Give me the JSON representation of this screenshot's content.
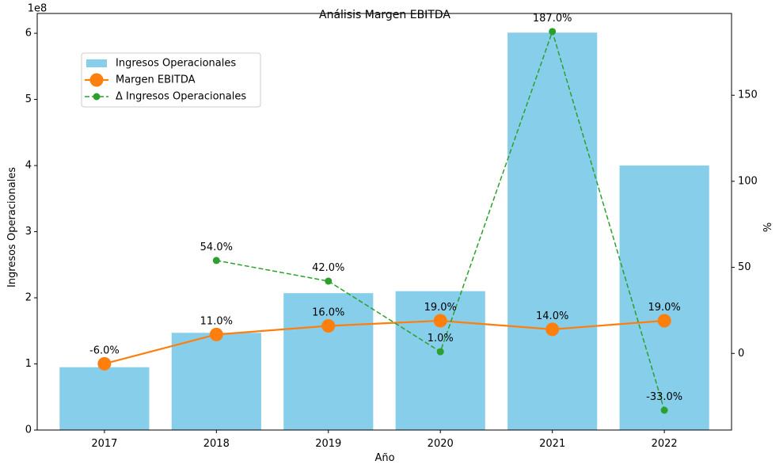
{
  "chart_data": {
    "type": "bar",
    "title": "Análisis Margen EBITDA",
    "xlabel": "Año",
    "ylabel_left": "Ingresos Operacionales",
    "ylabel_right": "%",
    "left_axis_multiplier": "1e8",
    "categories": [
      "2017",
      "2018",
      "2019",
      "2020",
      "2021",
      "2022"
    ],
    "ylim_left": [
      0,
      6.3
    ],
    "ylim_right": [
      -44.5,
      197.5
    ],
    "left_ticks": [
      0,
      1,
      2,
      3,
      4,
      5,
      6
    ],
    "right_ticks": [
      0,
      50,
      100,
      150
    ],
    "legend_position": "upper-left",
    "grid": false,
    "series": [
      {
        "name": "Ingresos Operacionales",
        "type": "bar",
        "axis": "left",
        "color": "#87ceeb",
        "values": [
          0.95,
          1.47,
          2.07,
          2.1,
          6.01,
          4.0
        ]
      },
      {
        "name": "Margen EBITDA",
        "type": "line",
        "axis": "right",
        "color": "#ff7f0e",
        "values": [
          -6.0,
          11.0,
          16.0,
          19.0,
          14.0,
          19.0
        ],
        "labels": [
          "-6.0%",
          "11.0%",
          "16.0%",
          "19.0%",
          "14.0%",
          "19.0%"
        ]
      },
      {
        "name": "Δ Ingresos Operacionales",
        "type": "line",
        "style": "dashed",
        "axis": "right",
        "color": "#2ca02c",
        "values": [
          null,
          54.0,
          42.0,
          1.0,
          187.0,
          -33.0
        ],
        "labels": [
          "",
          "54.0%",
          "42.0%",
          "1.0%",
          "187.0%",
          "-33.0%"
        ]
      }
    ]
  }
}
